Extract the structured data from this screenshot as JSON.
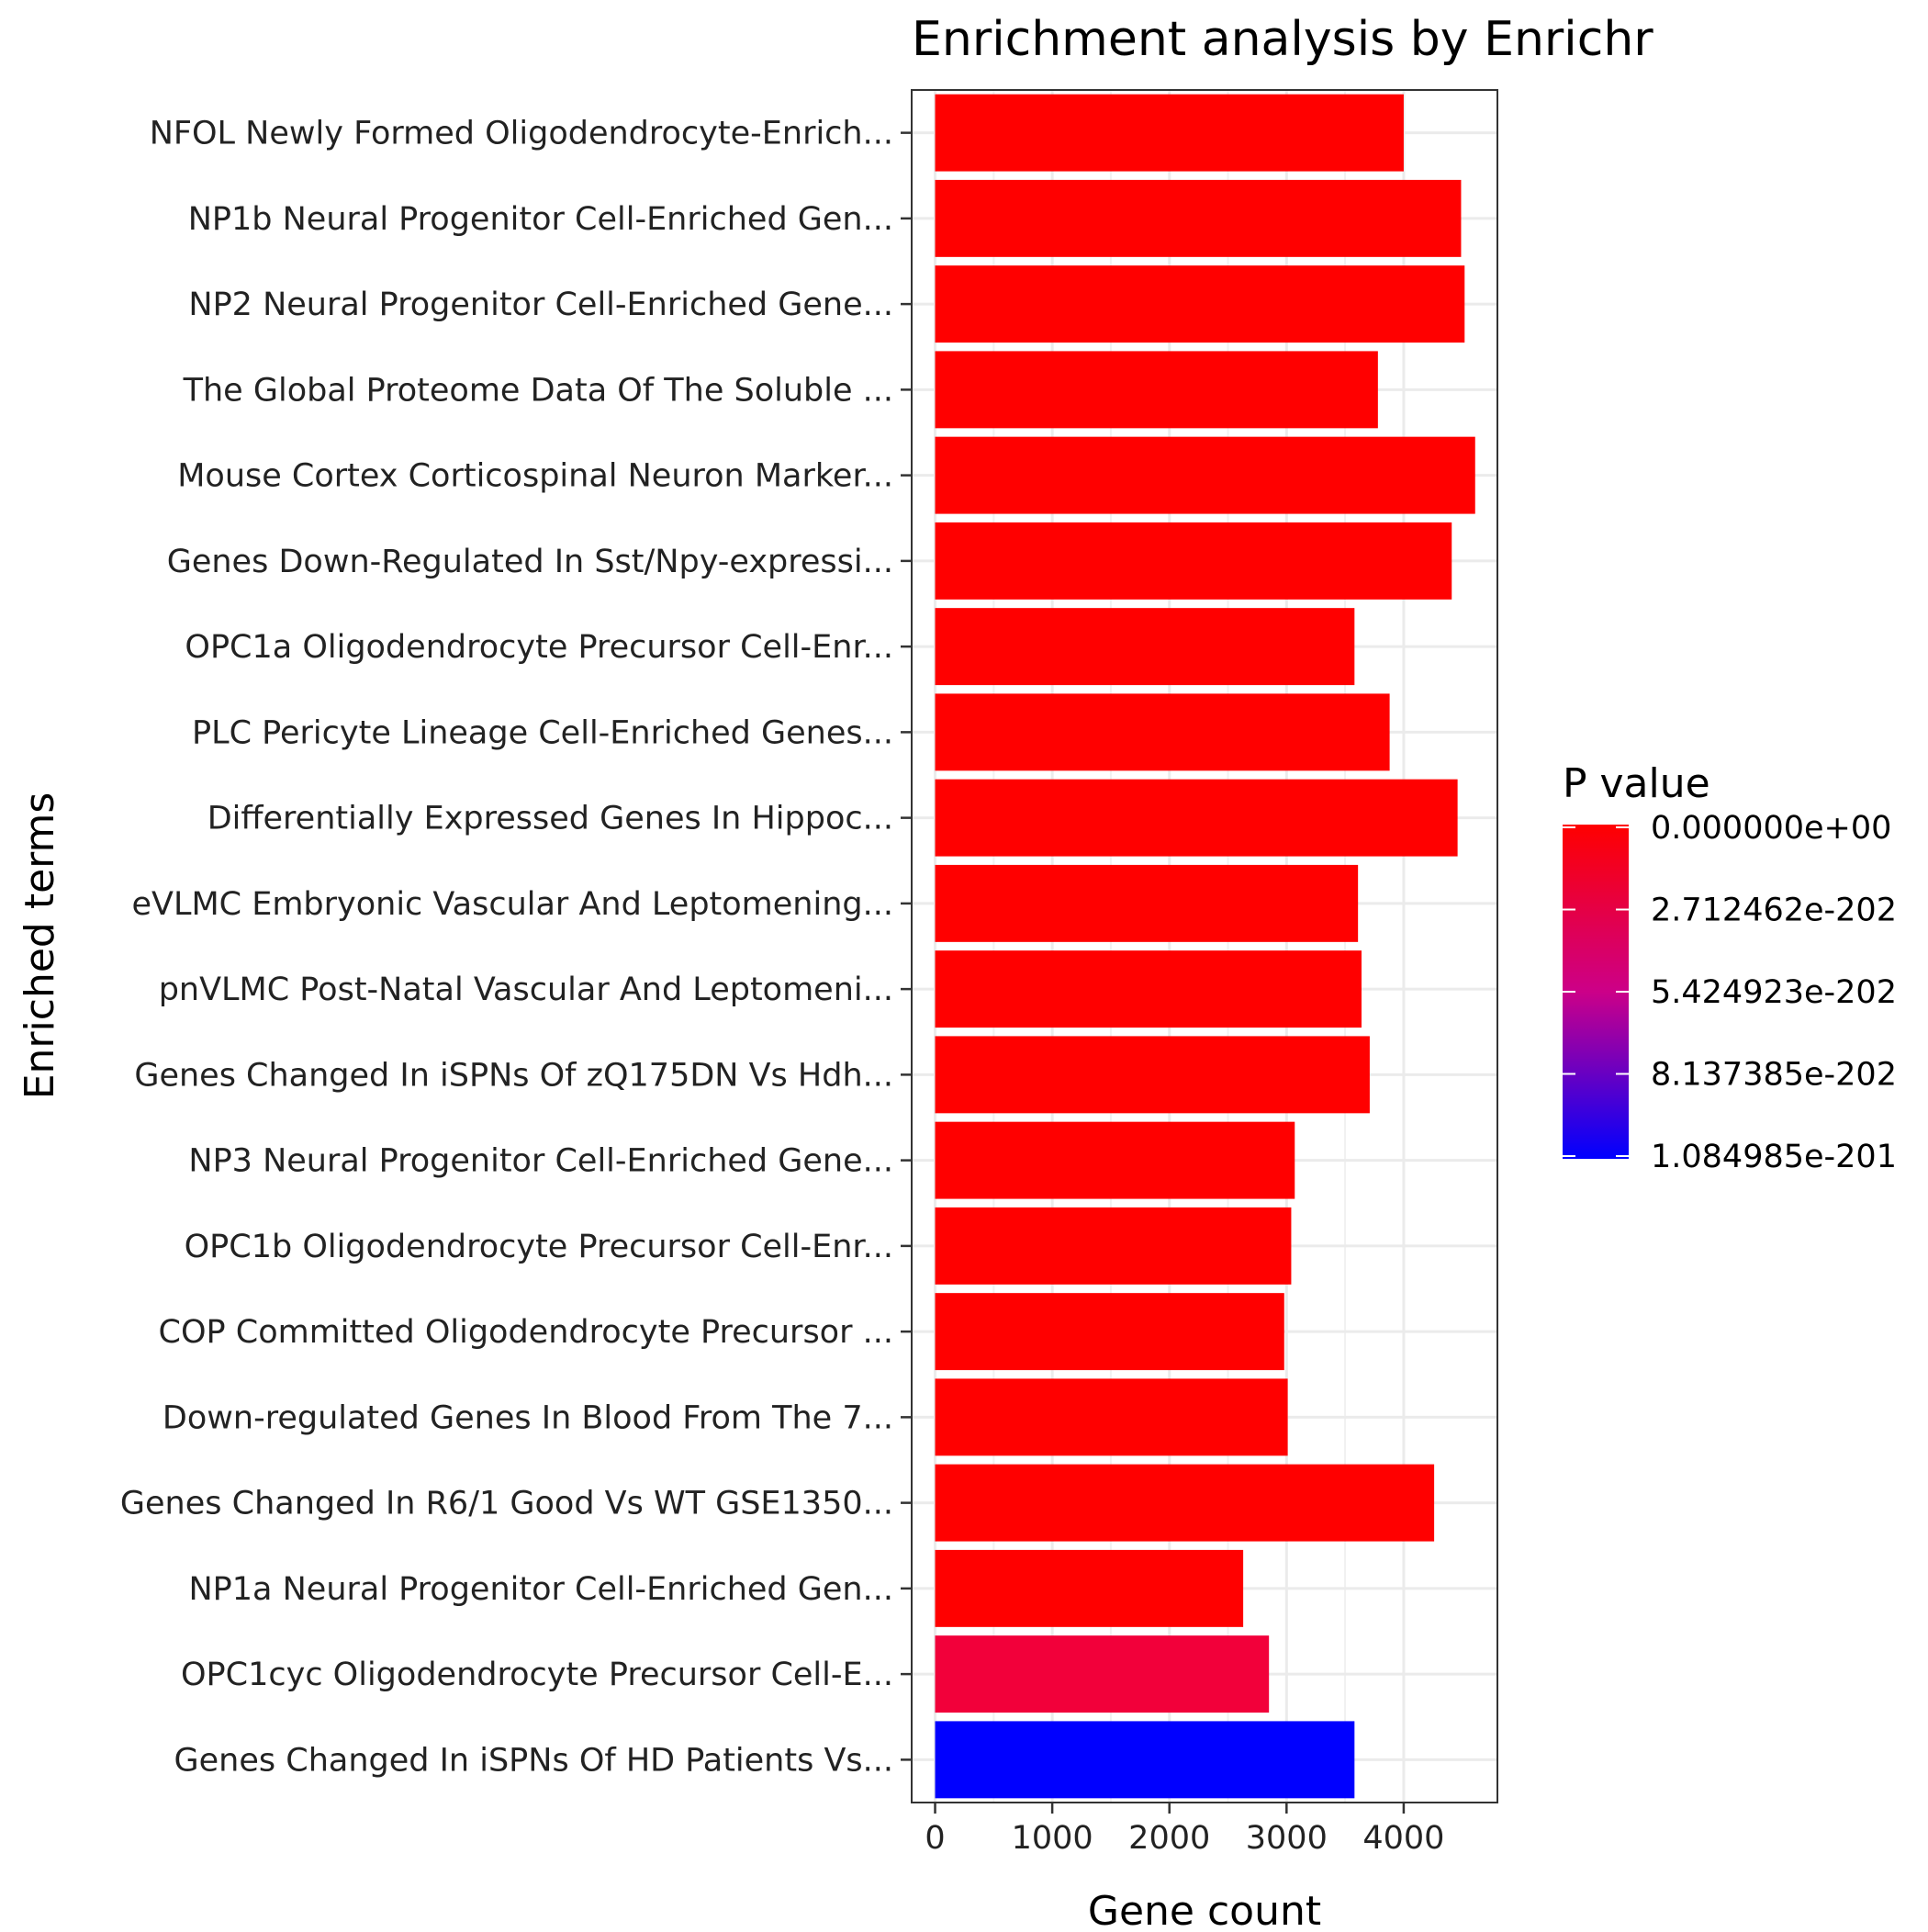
{
  "chart_data": {
    "type": "bar",
    "orientation": "horizontal",
    "title": "Enrichment analysis by Enrichr",
    "xlabel": "Gene count",
    "ylabel": "Enriched terms",
    "xlim": [
      -200,
      4800
    ],
    "x_ticks": [
      0,
      1000,
      2000,
      3000,
      4000
    ],
    "x_tick_labels": [
      "0",
      "1000",
      "2000",
      "3000",
      "4000"
    ],
    "grid": true,
    "legend": {
      "title": "P value",
      "placement": "right",
      "type": "colorbar",
      "low_color": "#FF0000",
      "high_color": "#0000FF",
      "min": 0,
      "max": 1.084985e-201,
      "labels": [
        "0.000000e+00",
        "2.712462e-202",
        "5.424923e-202",
        "8.137385e-202",
        "1.084985e-201"
      ]
    },
    "categories": [
      "NFOL Newly Formed Oligodendrocyte-Enrich...",
      "NP1b Neural Progenitor Cell-Enriched Gen...",
      "NP2 Neural Progenitor Cell-Enriched Gene...",
      "The Global Proteome Data Of The Soluble ...",
      "Mouse Cortex Corticospinal Neuron Marker...",
      "Genes Down-Regulated In Sst/Npy-expressi...",
      "OPC1a Oligodendrocyte Precursor Cell-Enr...",
      "PLC Pericyte Lineage Cell-Enriched Genes...",
      "Differentially Expressed Genes In Hippoc...",
      "eVLMC Embryonic Vascular And Leptomening...",
      "pnVLMC Post-Natal Vascular And Leptomeni...",
      "Genes Changed In iSPNs Of zQ175DN Vs Hdh...",
      "NP3 Neural Progenitor Cell-Enriched Gene...",
      "OPC1b Oligodendrocyte Precursor Cell-Enr...",
      "COP Committed Oligodendrocyte Precursor ...",
      "Down-regulated Genes In Blood From The 7...",
      "Genes Changed In R6/1 Good Vs WT GSE1350...",
      "NP1a Neural Progenitor Cell-Enriched Gen...",
      "OPC1cyc Oligodendrocyte Precursor Cell-E...",
      "Genes Changed In iSPNs Of HD Patients Vs..."
    ],
    "values": [
      4000,
      4490,
      4520,
      3780,
      4610,
      4410,
      3580,
      3880,
      4460,
      3610,
      3640,
      3710,
      3070,
      3040,
      2980,
      3010,
      4260,
      2630,
      2850,
      3580
    ],
    "bar_colors": [
      "#FF0000",
      "#FF0000",
      "#FF0000",
      "#FF0000",
      "#FF0000",
      "#FF0000",
      "#FF0000",
      "#FF0000",
      "#FF0000",
      "#FF0000",
      "#FF0000",
      "#FF0000",
      "#FF0000",
      "#FF0000",
      "#FF0000",
      "#FF0000",
      "#FF0000",
      "#FF0000",
      "#F2003A",
      "#0000FF"
    ]
  }
}
